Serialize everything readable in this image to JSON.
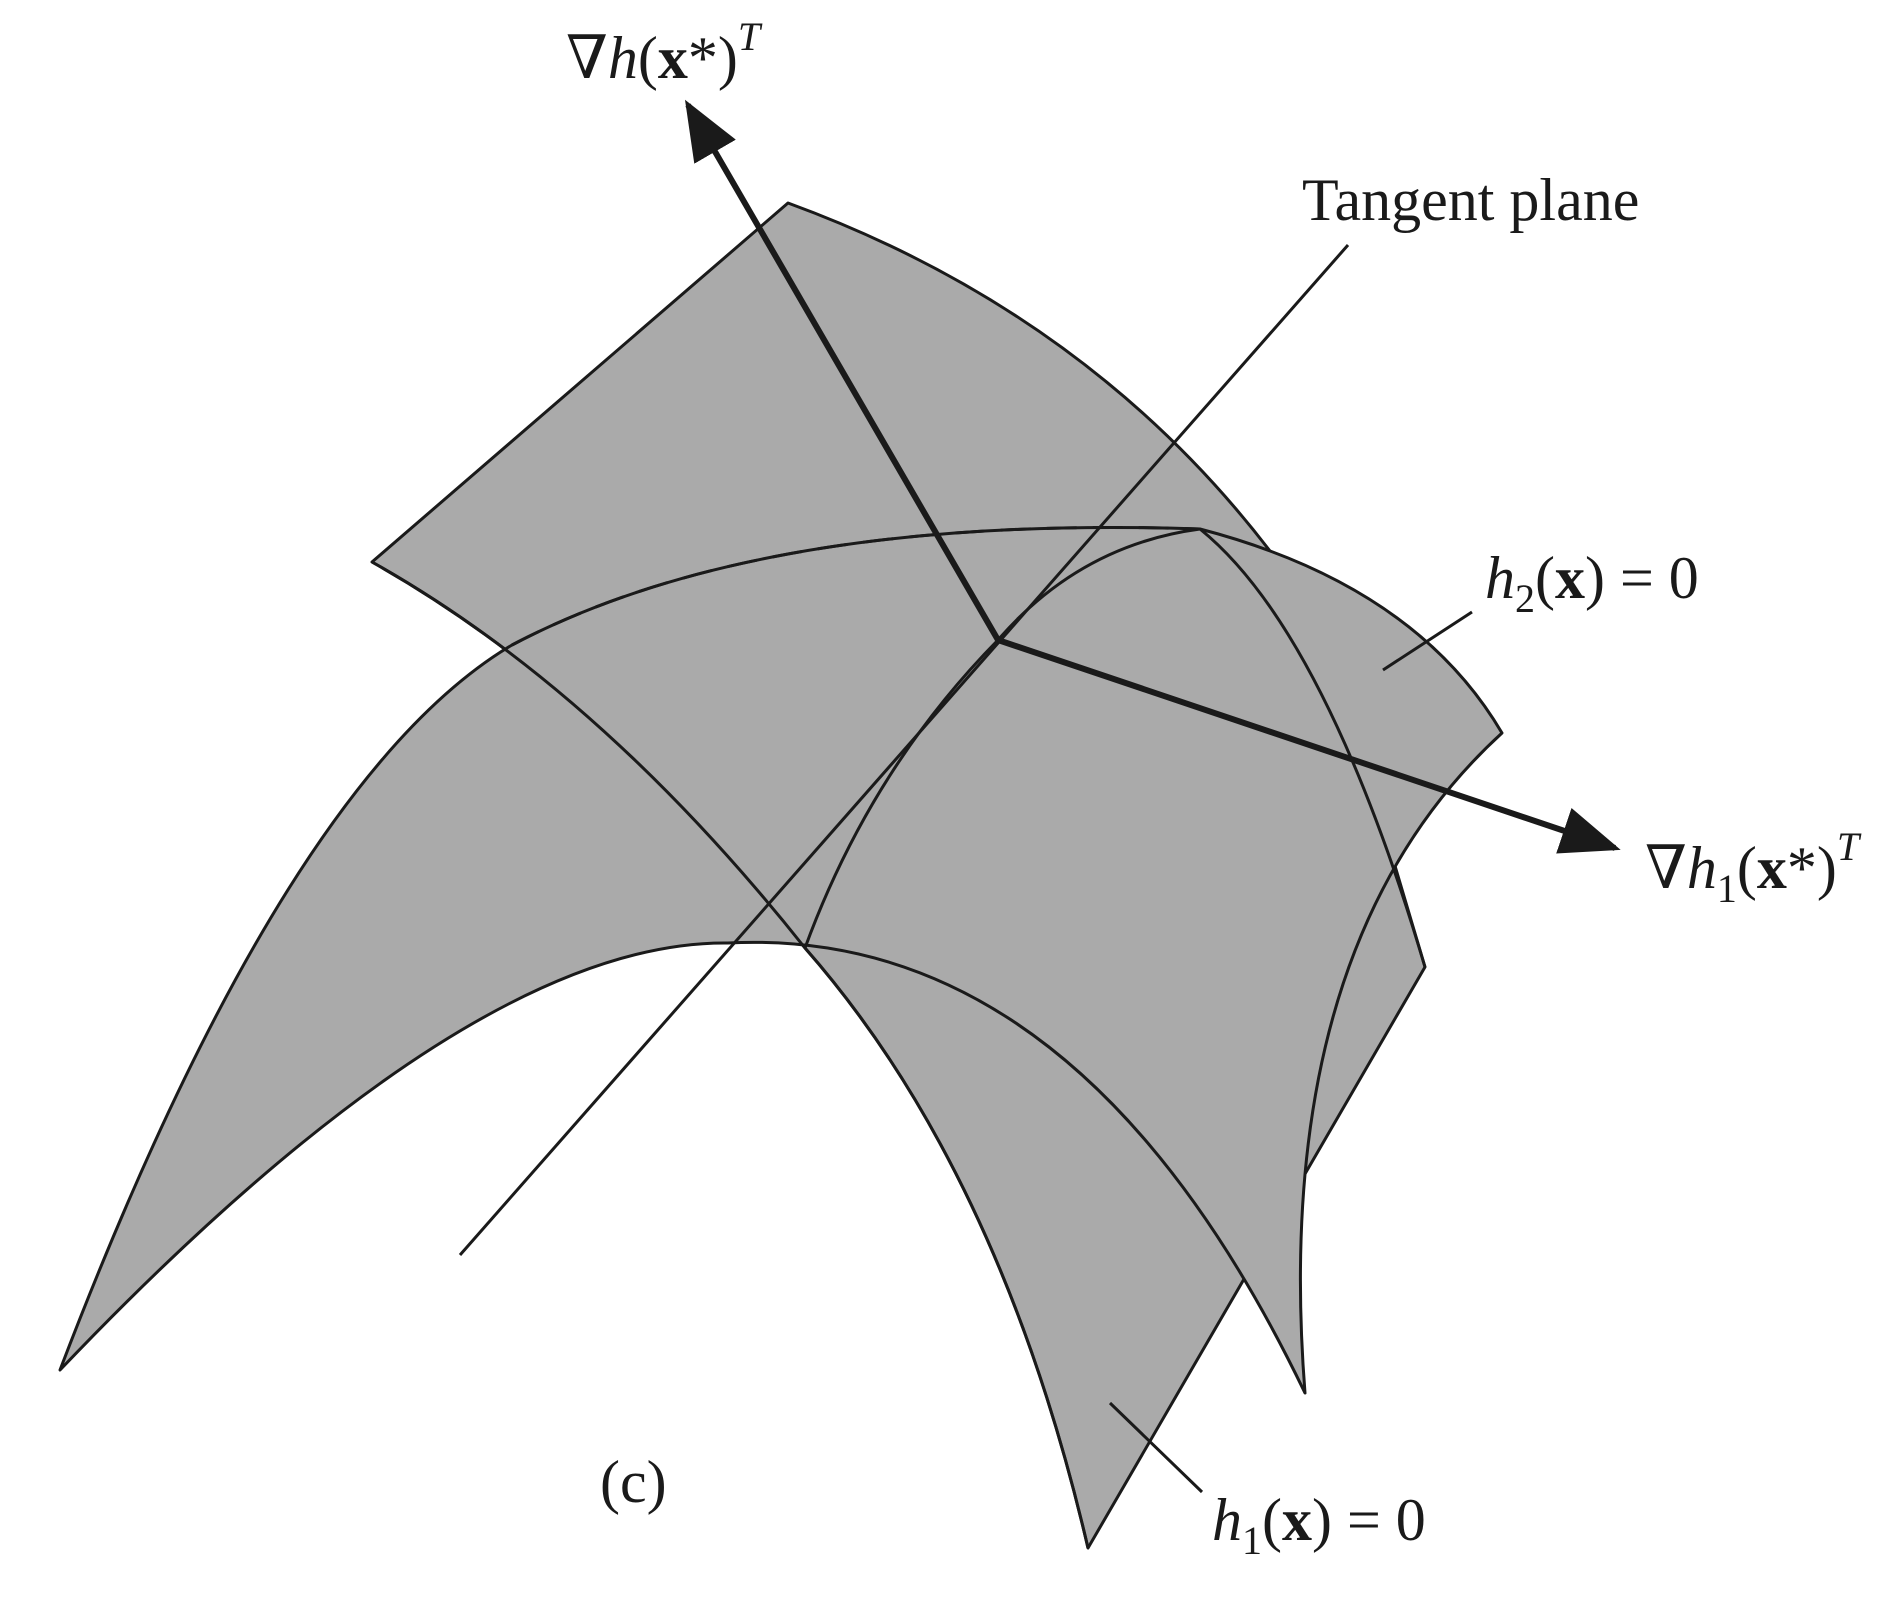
{
  "figure": {
    "colors": {
      "surface_fill": "#aaaaaa",
      "stroke": "#1a1a1a",
      "background": "#ffffff"
    },
    "labels": {
      "grad_h": {
        "nabla": "∇",
        "h": "h",
        "open": "(",
        "x": "x",
        "star_close": "*)",
        "sup": "T"
      },
      "tangent_plane": "Tangent plane",
      "h2_eq": {
        "h": "h",
        "sub": "2",
        "open": "(",
        "x": "x",
        "close_eq": ") = 0"
      },
      "grad_h1": {
        "nabla": "∇",
        "h": "h",
        "sub": "1",
        "open": "(",
        "x": "x",
        "star_close": "*)",
        "sup": "T"
      },
      "h1_eq": {
        "h": "h",
        "sub": "1",
        "open": "(",
        "x": "x",
        "close_eq": ") = 0"
      },
      "caption": "(c)"
    }
  }
}
